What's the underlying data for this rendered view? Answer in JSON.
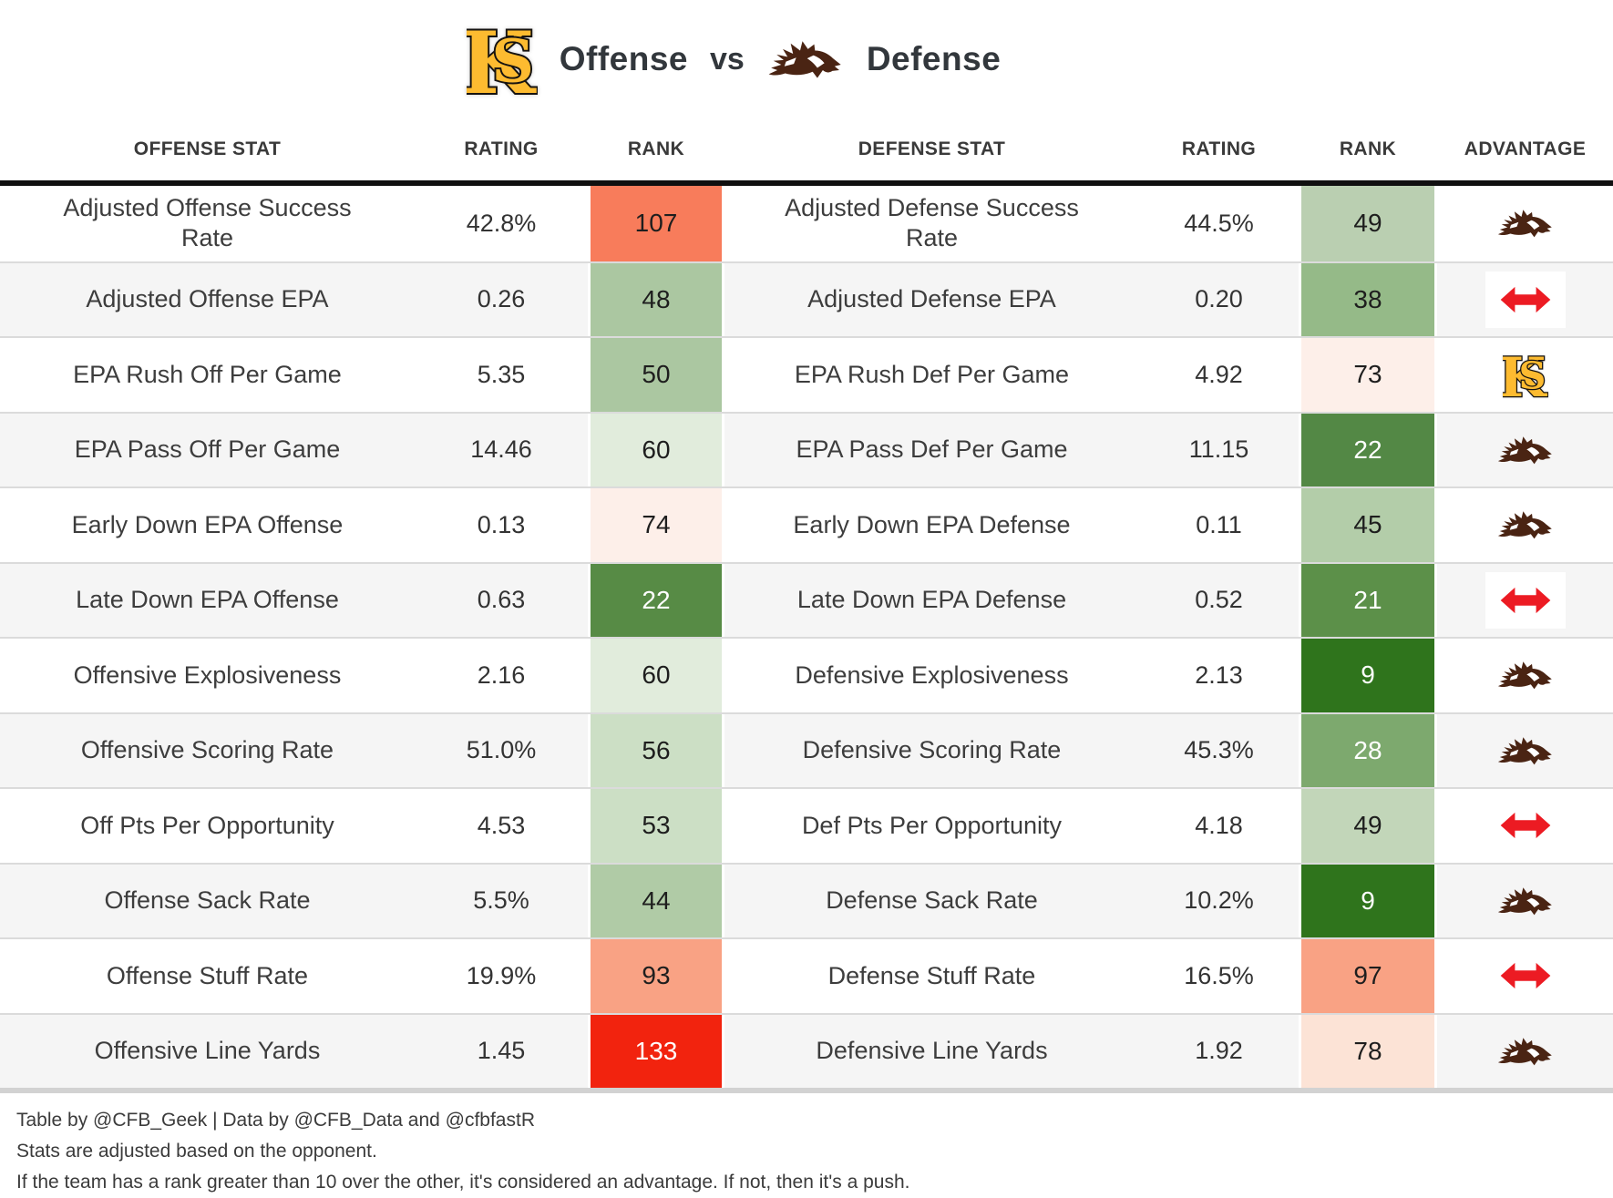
{
  "title": {
    "left_team_icon": "kennesaw-state-logo-icon",
    "offense_label": "Offense",
    "vs_label": "vs",
    "right_team_icon": "wmu-bronco-logo-icon",
    "defense_label": "Defense"
  },
  "colors": {
    "push_arrow": "#EC1B23",
    "ks_gold": "#FDBB30",
    "ks_outline": "#161310",
    "bronco_brown": "#4A2413",
    "best_rank_green": "#2F741C",
    "worst_rank_red": "#F2230E",
    "header_bar": "#101010",
    "bottom_bar": "#D2D2D2",
    "alt_row": "#F5F5F5"
  },
  "chart_data": {
    "type": "table",
    "title": "Offense vs Defense",
    "columns": {
      "offense_stat": "OFFENSE STAT",
      "offense_rating": "RATING",
      "offense_rank": "RANK",
      "defense_stat": "DEFENSE STAT",
      "defense_rating": "RATING",
      "defense_rank": "RANK",
      "advantage": "ADVANTAGE"
    },
    "rows": [
      {
        "offense_stat": "Adjusted Offense Success Rate",
        "offense_rating": "42.8%",
        "offense_rank": "107",
        "offense_rank_bg": "#F87C5B",
        "offense_rank_fg": "#1E1E1E",
        "defense_stat": "Adjusted Defense Success Rate",
        "defense_rating": "44.5%",
        "defense_rank": "49",
        "defense_rank_bg": "#BACFB1",
        "defense_rank_fg": "#1E1E1E",
        "advantage": "wmu-bronco-logo-icon"
      },
      {
        "offense_stat": "Adjusted Offense EPA",
        "offense_rating": "0.26",
        "offense_rank": "48",
        "offense_rank_bg": "#ABC7A1",
        "offense_rank_fg": "#1E1E1E",
        "defense_stat": "Adjusted Defense EPA",
        "defense_rating": "0.20",
        "defense_rank": "38",
        "defense_rank_bg": "#95BA88",
        "defense_rank_fg": "#1E1E1E",
        "advantage": "push-arrow-icon"
      },
      {
        "offense_stat": "EPA Rush Off Per Game",
        "offense_rating": "5.35",
        "offense_rank": "50",
        "offense_rank_bg": "#ABC7A1",
        "offense_rank_fg": "#1E1E1E",
        "defense_stat": "EPA Rush Def Per Game",
        "defense_rating": "4.92",
        "defense_rank": "73",
        "defense_rank_bg": "#FDEFE9",
        "defense_rank_fg": "#1E1E1E",
        "advantage": "kennesaw-state-logo-icon"
      },
      {
        "offense_stat": "EPA Pass Off Per Game",
        "offense_rating": "14.46",
        "offense_rank": "60",
        "offense_rank_bg": "#E1ECDC",
        "offense_rank_fg": "#1E1E1E",
        "defense_stat": "EPA Pass Def Per Game",
        "defense_rating": "11.15",
        "defense_rank": "22",
        "defense_rank_bg": "#538845",
        "defense_rank_fg": "#FFFFFF",
        "advantage": "wmu-bronco-logo-icon"
      },
      {
        "offense_stat": "Early Down EPA Offense",
        "offense_rating": "0.13",
        "offense_rank": "74",
        "offense_rank_bg": "#FDEFE9",
        "offense_rank_fg": "#1E1E1E",
        "defense_stat": "Early Down EPA Defense",
        "defense_rating": "0.11",
        "defense_rank": "45",
        "defense_rank_bg": "#B3CDA9",
        "defense_rank_fg": "#1E1E1E",
        "advantage": "wmu-bronco-logo-icon"
      },
      {
        "offense_stat": "Late Down EPA Offense",
        "offense_rating": "0.63",
        "offense_rank": "22",
        "offense_rank_bg": "#578B45",
        "offense_rank_fg": "#FFFFFF",
        "defense_stat": "Late Down EPA Defense",
        "defense_rating": "0.52",
        "defense_rank": "21",
        "defense_rank_bg": "#5C9049",
        "defense_rank_fg": "#FFFFFF",
        "advantage": "push-arrow-icon"
      },
      {
        "offense_stat": "Offensive Explosiveness",
        "offense_rating": "2.16",
        "offense_rank": "60",
        "offense_rank_bg": "#E1ECDC",
        "offense_rank_fg": "#1E1E1E",
        "defense_stat": "Defensive Explosiveness",
        "defense_rating": "2.13",
        "defense_rank": "9",
        "defense_rank_bg": "#2F741C",
        "defense_rank_fg": "#FFFFFF",
        "advantage": "wmu-bronco-logo-icon"
      },
      {
        "offense_stat": "Offensive Scoring Rate",
        "offense_rating": "51.0%",
        "offense_rank": "56",
        "offense_rank_bg": "#CCDFC5",
        "offense_rank_fg": "#1E1E1E",
        "defense_stat": "Defensive Scoring Rate",
        "defense_rating": "45.3%",
        "defense_rank": "28",
        "defense_rank_bg": "#7DA96E",
        "defense_rank_fg": "#FFFFFF",
        "advantage": "wmu-bronco-logo-icon"
      },
      {
        "offense_stat": "Off Pts Per Opportunity",
        "offense_rating": "4.53",
        "offense_rank": "53",
        "offense_rank_bg": "#CCDFC5",
        "offense_rank_fg": "#1E1E1E",
        "defense_stat": "Def Pts Per Opportunity",
        "defense_rating": "4.18",
        "defense_rank": "49",
        "defense_rank_bg": "#C2D6B9",
        "defense_rank_fg": "#1E1E1E",
        "advantage": "push-arrow-icon"
      },
      {
        "offense_stat": "Offense Sack Rate",
        "offense_rating": "5.5%",
        "offense_rank": "44",
        "offense_rank_bg": "#B0CBA6",
        "offense_rank_fg": "#1E1E1E",
        "defense_stat": "Defense Sack Rate",
        "defense_rating": "10.2%",
        "defense_rank": "9",
        "defense_rank_bg": "#2F741C",
        "defense_rank_fg": "#FFFFFF",
        "advantage": "wmu-bronco-logo-icon"
      },
      {
        "offense_stat": "Offense Stuff Rate",
        "offense_rating": "19.9%",
        "offense_rank": "93",
        "offense_rank_bg": "#F9A284",
        "offense_rank_fg": "#1E1E1E",
        "defense_stat": "Defense Stuff Rate",
        "defense_rating": "16.5%",
        "defense_rank": "97",
        "defense_rank_bg": "#F9A284",
        "defense_rank_fg": "#1E1E1E",
        "advantage": "push-arrow-icon"
      },
      {
        "offense_stat": "Offensive Line Yards",
        "offense_rating": "1.45",
        "offense_rank": "133",
        "offense_rank_bg": "#F2230E",
        "offense_rank_fg": "#FFFFFF",
        "defense_stat": "Defensive Line Yards",
        "defense_rating": "1.92",
        "defense_rank": "78",
        "defense_rank_bg": "#FCE3D6",
        "defense_rank_fg": "#1E1E1E",
        "advantage": "wmu-bronco-logo-icon"
      }
    ]
  },
  "footer": {
    "credit_line": "Table by @CFB_Geek | Data by @CFB_Data and @cfbfastR",
    "note_line1": "Stats are adjusted based on the opponent.",
    "note_line2": "If the team has a rank greater than 10 over the other, it's considered an advantage. If not, then it's a push."
  }
}
